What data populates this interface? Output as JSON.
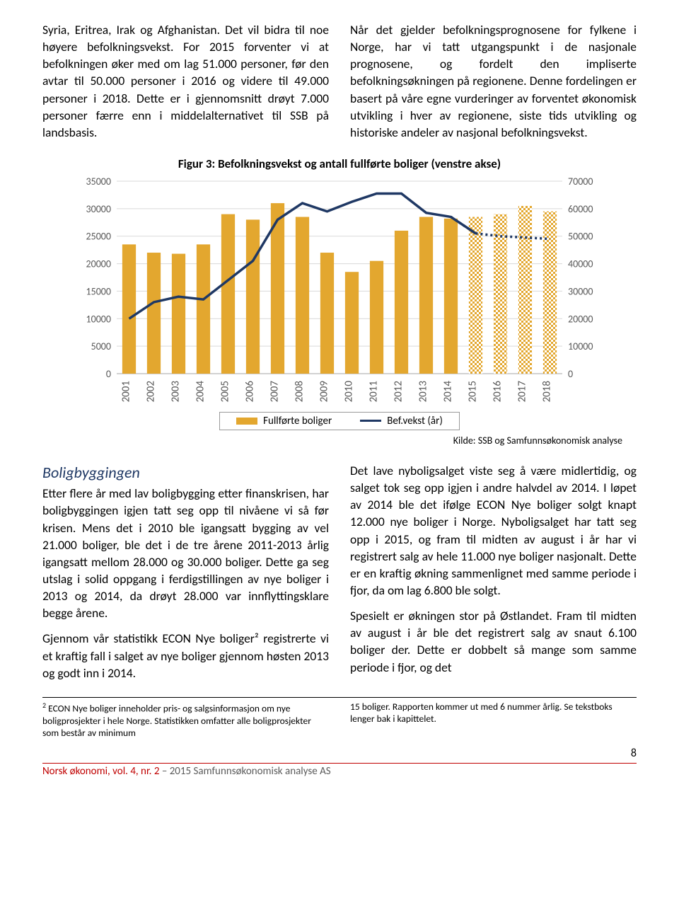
{
  "para_left": "Syria, Eritrea, Irak og Afghanistan. Det vil bidra til noe høyere befolkningsvekst. For 2015 forventer vi at befolkningen øker med om lag 51.000 personer, før den avtar til 50.000 personer i 2016 og videre til 49.000 personer i 2018. Dette er i gjennomsnitt drøyt 7.000 personer færre enn i middelalternativet til SSB på landsbasis.",
  "para_right": "Når det gjelder befolkningsprognosene for fylkene i Norge, har vi tatt utgangspunkt i de nasjonale prognosene, og fordelt den impliserte befolkningsøkningen på regionene. Denne fordelingen er basert på våre egne vurderinger av forventet økonomisk utvikling i hver av regionene, siste tids utvikling og historiske andeler av nasjonal befolkningsvekst.",
  "chart": {
    "title": "Figur 3: Befolkningsvekst og antall fullførte boliger (venstre akse)",
    "years": [
      "2001",
      "2002",
      "2003",
      "2004",
      "2005",
      "2006",
      "2007",
      "2008",
      "2009",
      "2010",
      "2011",
      "2012",
      "2013",
      "2014",
      "2015",
      "2016",
      "2017",
      "2018"
    ],
    "bars": [
      23500,
      22000,
      21800,
      23500,
      29000,
      28000,
      31000,
      28500,
      22000,
      18500,
      20500,
      26000,
      28500,
      28200,
      28500,
      29000,
      30500,
      29500
    ],
    "line": [
      20000,
      26000,
      28000,
      27000,
      34000,
      41000,
      56000,
      62000,
      59000,
      62500,
      65500,
      65500,
      58500,
      57000,
      51000,
      50000,
      49500,
      49000
    ],
    "forecast_start_index": 14,
    "left_ticks": [
      0,
      5000,
      10000,
      15000,
      20000,
      25000,
      30000,
      35000
    ],
    "right_ticks": [
      0,
      10000,
      20000,
      30000,
      40000,
      50000,
      60000,
      70000
    ],
    "bar_color_solid": "#e3a72f",
    "bar_color_hatch": "#e3a72f",
    "line_color": "#1f3864",
    "grid_color": "#d9d9d9",
    "axis_color": "#a6a6a6",
    "tick_font": 14,
    "plot_bg": "#ffffff",
    "bar_width_ratio": 0.55,
    "legend_bars": "Fullførte boliger",
    "legend_line": "Bef.vekst (år)"
  },
  "kilde": "Kilde: SSB og Samfunnsøkonomisk analyse",
  "section_heading": "Boligbyggingen",
  "body_left_1": "Etter flere år med lav boligbygging etter finanskrisen, har boligbyggingen igjen tatt seg opp til nivåene vi så før krisen. Mens det i 2010 ble igangsatt bygging av vel 21.000 boliger, ble det i de tre årene 2011-2013 årlig igangsatt mellom 28.000 og 30.000 boliger. Dette ga seg utslag i solid oppgang i ferdigstillingen av nye boliger i 2013 og 2014, da drøyt 28.000 var innflyttingsklare begge årene.",
  "body_left_2": "Gjennom vår statistikk ECON Nye boliger² registrerte vi et kraftig fall i salget av nye boliger gjennom høsten 2013 og godt inn i 2014.",
  "body_right_1": "Det lave nyboligsalget viste seg å være midlertidig, og salget tok seg opp igjen i andre halvdel av 2014. I løpet av 2014 ble det ifølge ECON Nye boliger solgt knapt 12.000 nye boliger i Norge. Nyboligsalget har tatt seg opp i 2015, og fram til midten av august i år har vi registrert salg av hele 11.000 nye boliger nasjonalt. Dette er en kraftig økning sammenlignet med samme periode i fjor, da om lag 6.800 ble solgt.",
  "body_right_2": "Spesielt er økningen stor på Østlandet. Fram til midten av august i år ble det registrert salg av snaut 6.100 boliger der. Dette er dobbelt så mange som samme periode i fjor, og det",
  "footnote_left_num": "2",
  "footnote_left": "ECON Nye boliger inneholder pris- og salgsinformasjon om nye boligprosjekter i hele Norge. Statistikken omfatter alle boligprosjekter som består av minimum",
  "footnote_right": "15 boliger. Rapporten kommer ut med 6 nummer årlig. Se tekstboks lenger bak i kapittelet.",
  "page_number": "8",
  "footer_red": "Norsk økonomi, vol. 4, nr. 2",
  "footer_grey": " – 2015 Samfunnsøkonomisk analyse AS"
}
